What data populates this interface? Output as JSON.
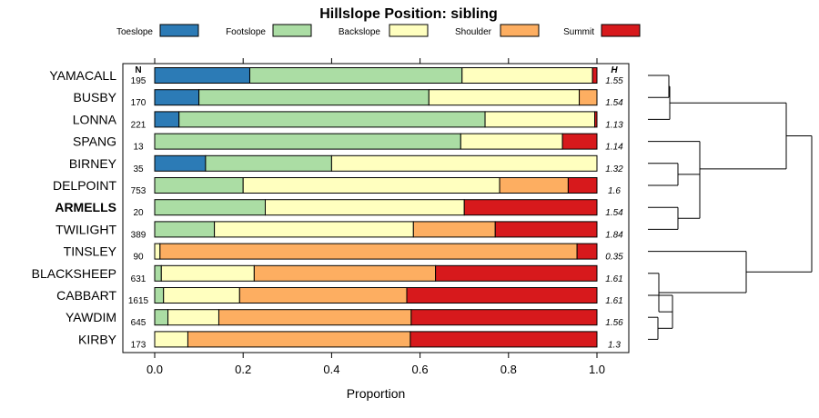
{
  "chart_data": {
    "type": "bar",
    "stacked": true,
    "orientation": "horizontal",
    "title": "Hillslope Position: sibling",
    "xlabel": "Proportion",
    "xlim": [
      0,
      1
    ],
    "xticks": [
      0.0,
      0.2,
      0.4,
      0.6,
      0.8,
      1.0
    ],
    "xtick_labels": [
      "0.0",
      "0.2",
      "0.4",
      "0.6",
      "0.8",
      "1.0"
    ],
    "n_header": "N",
    "h_header": "H",
    "legend": [
      {
        "name": "Toeslope",
        "color": "#2C7BB6"
      },
      {
        "name": "Footslope",
        "color": "#ABDDA4"
      },
      {
        "name": "Backslope",
        "color": "#FFFFBF"
      },
      {
        "name": "Shoulder",
        "color": "#FDAE61"
      },
      {
        "name": "Summit",
        "color": "#D7191C"
      }
    ],
    "categories": [
      "YAMACALL",
      "BUSBY",
      "LONNA",
      "SPANG",
      "BIRNEY",
      "DELPOINT",
      "ARMELLS",
      "TWILIGHT",
      "TINSLEY",
      "BLACKSHEEP",
      "CABBART",
      "YAWDIM",
      "KIRBY"
    ],
    "highlight": "ARMELLS",
    "n": [
      "195",
      "170",
      "221",
      "13",
      "35",
      "753",
      "20",
      "389",
      "90",
      "631",
      "1615",
      "645",
      "173"
    ],
    "h": [
      "1.55",
      "1.54",
      "1.13",
      "1.14",
      "1.32",
      "1.6",
      "1.54",
      "1.84",
      "0.35",
      "1.61",
      "1.61",
      "1.56",
      "1.3"
    ],
    "series": [
      {
        "name": "Toeslope",
        "values": [
          0.215,
          0.1,
          0.055,
          0.0,
          0.115,
          0.0,
          0.0,
          0.0,
          0.0,
          0.0,
          0.0,
          0.0,
          0.0
        ]
      },
      {
        "name": "Footslope",
        "values": [
          0.48,
          0.52,
          0.692,
          0.692,
          0.285,
          0.2,
          0.25,
          0.135,
          0.0,
          0.015,
          0.02,
          0.03,
          0.0
        ]
      },
      {
        "name": "Backslope",
        "values": [
          0.295,
          0.34,
          0.248,
          0.23,
          0.6,
          0.58,
          0.45,
          0.45,
          0.012,
          0.21,
          0.172,
          0.115,
          0.075
        ]
      },
      {
        "name": "Shoulder",
        "values": [
          0.0,
          0.04,
          0.0,
          0.0,
          0.0,
          0.155,
          0.0,
          0.185,
          0.943,
          0.41,
          0.378,
          0.435,
          0.503
        ]
      },
      {
        "name": "Summit",
        "values": [
          0.01,
          0.0,
          0.005,
          0.078,
          0.0,
          0.065,
          0.3,
          0.23,
          0.045,
          0.365,
          0.43,
          0.42,
          0.422
        ]
      }
    ],
    "dendrogram": {
      "method": "hierarchical clustering of composition profiles",
      "leaf_order": [
        "YAMACALL",
        "BUSBY",
        "LONNA",
        "SPANG",
        "BIRNEY",
        "DELPOINT",
        "ARMELLS",
        "TWILIGHT",
        "TINSLEY",
        "BLACKSHEEP",
        "CABBART",
        "YAWDIM",
        "KIRBY"
      ]
    }
  }
}
